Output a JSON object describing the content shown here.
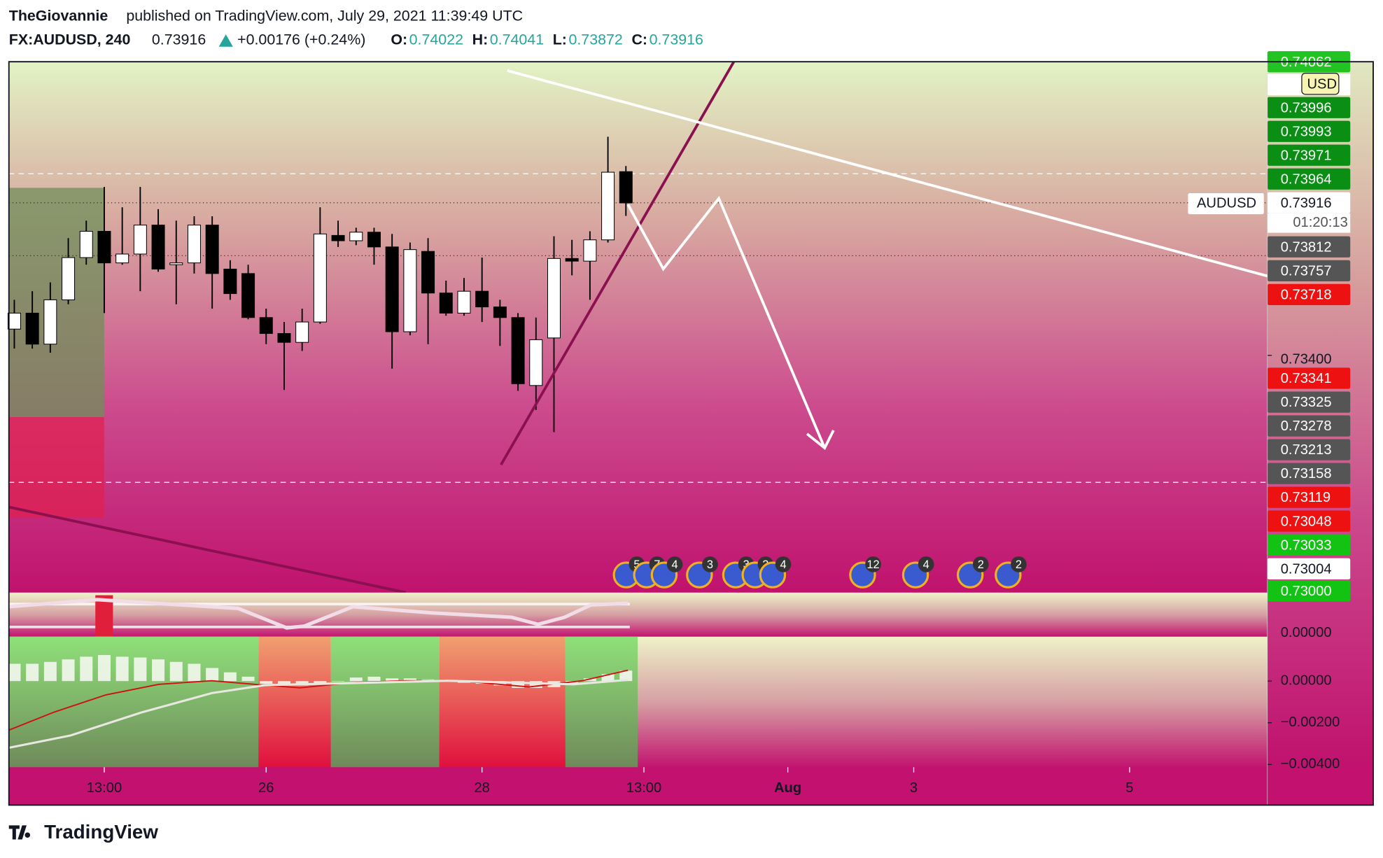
{
  "header": {
    "author": "TheGiovannie",
    "published": "published on TradingView.com, July 29, 2021 11:39:49 UTC",
    "symbol": "FX:AUDUSD, 240",
    "last": "0.73916",
    "change": "+0.00176 (+0.24%)",
    "ohlc": [
      {
        "label": "O:",
        "value": "0.74022"
      },
      {
        "label": "H:",
        "value": "0.74041"
      },
      {
        "label": "L:",
        "value": "0.73872"
      },
      {
        "label": "C:",
        "value": "0.73916"
      }
    ]
  },
  "chart_data": {
    "type": "candlestick",
    "x": [
      0,
      1,
      2,
      3,
      4,
      5,
      6,
      7,
      8,
      9,
      10,
      11,
      12,
      13,
      14,
      15,
      16,
      17,
      18,
      19,
      20,
      21,
      22,
      23,
      24,
      25,
      26,
      27,
      28,
      29,
      30,
      31,
      32,
      33,
      34
    ],
    "open": [
      0.73489,
      0.73543,
      0.73438,
      0.73588,
      0.73731,
      0.7382,
      0.73713,
      0.73743,
      0.73841,
      0.73707,
      0.73713,
      0.73841,
      0.73692,
      0.73677,
      0.73528,
      0.73474,
      0.73444,
      0.73513,
      0.73806,
      0.73788,
      0.73817,
      0.73767,
      0.7348,
      0.73752,
      0.73611,
      0.73543,
      0.73617,
      0.73564,
      0.73528,
      0.73298,
      0.73459,
      0.73728,
      0.73719,
      0.73791,
      0.74022
    ],
    "high": [
      0.73588,
      0.73617,
      0.73647,
      0.73797,
      0.73856,
      0.7397,
      0.73901,
      0.7397,
      0.73895,
      0.73856,
      0.73871,
      0.73871,
      0.73722,
      0.73707,
      0.73558,
      0.73513,
      0.73558,
      0.73901,
      0.73856,
      0.73832,
      0.73832,
      0.73811,
      0.73782,
      0.73797,
      0.73653,
      0.73662,
      0.73731,
      0.73588,
      0.73543,
      0.73528,
      0.73803,
      0.73791,
      0.7382,
      0.7414,
      0.74041
    ],
    "low": [
      0.73423,
      0.73423,
      0.73409,
      0.73573,
      0.73707,
      0.73543,
      0.73707,
      0.73617,
      0.73683,
      0.73573,
      0.73677,
      0.73558,
      0.73588,
      0.73522,
      0.73438,
      0.73283,
      0.73415,
      0.73507,
      0.73767,
      0.73773,
      0.73707,
      0.73355,
      0.73468,
      0.73438,
      0.73534,
      0.73534,
      0.73513,
      0.73432,
      0.7328,
      0.73215,
      0.7314,
      0.73671,
      0.73588,
      0.73782,
      0.73872
    ],
    "close": [
      0.73543,
      0.73438,
      0.73588,
      0.73731,
      0.7382,
      0.73713,
      0.73743,
      0.73841,
      0.73692,
      0.73713,
      0.73841,
      0.73677,
      0.73609,
      0.73528,
      0.73474,
      0.73444,
      0.73513,
      0.73811,
      0.73788,
      0.73817,
      0.73767,
      0.7348,
      0.73758,
      0.73611,
      0.73543,
      0.73617,
      0.73564,
      0.73528,
      0.73304,
      0.73453,
      0.73728,
      0.73719,
      0.73791,
      0.7402,
      0.73916
    ],
    "up_color": "#ffffff",
    "down_color": "#000000",
    "xlim": [
      -0.3,
      69.66
    ],
    "xticks": [
      {
        "value": 5,
        "label": "13:00"
      },
      {
        "value": 14,
        "label": "26"
      },
      {
        "value": 26,
        "label": "28"
      },
      {
        "value": 35,
        "label": "13:00"
      },
      {
        "value": 43,
        "label": "Aug"
      },
      {
        "value": 50,
        "label": "3"
      },
      {
        "value": 62,
        "label": "5"
      }
    ],
    "ylim": [
      0.72597,
      0.74394
    ],
    "yticks": [
      {
        "value": 0.734,
        "label": "0.73400"
      }
    ],
    "symbol_tag": "AUDUSD",
    "currency": "USD",
    "countdown": "01:20:13",
    "price_labels": [
      {
        "value": 0.74062,
        "color": "#22c322"
      },
      {
        "value": 0.73996,
        "color": "#0a8f14"
      },
      {
        "value": 0.73993,
        "color": "#0a8f14"
      },
      {
        "value": 0.73971,
        "color": "#0a8f14"
      },
      {
        "value": 0.73964,
        "color": "#0a8f14"
      },
      {
        "value": 0.73916,
        "color": "#ffffff"
      },
      {
        "value": 0.73812,
        "color": "#555555"
      },
      {
        "value": 0.73757,
        "color": "#555555"
      },
      {
        "value": 0.73718,
        "color": "#ee1111"
      },
      {
        "value": 0.73341,
        "color": "#ee1111"
      },
      {
        "value": 0.73325,
        "color": "#555555"
      },
      {
        "value": 0.73278,
        "color": "#555555"
      },
      {
        "value": 0.73213,
        "color": "#555555"
      },
      {
        "value": 0.73158,
        "color": "#555555"
      },
      {
        "value": 0.73119,
        "color": "#ee1111"
      },
      {
        "value": 0.73048,
        "color": "#ee1111"
      },
      {
        "value": 0.73033,
        "color": "#13c313"
      },
      {
        "value": 0.73004,
        "color": "#ffffff"
      },
      {
        "value": 0.73,
        "label": "0.73000",
        "color": "#13c313"
      }
    ],
    "events": [
      5,
      7,
      4,
      3,
      3,
      2,
      4,
      12,
      4,
      2,
      2
    ],
    "oscillator_label": "0.00000",
    "macd": {
      "values": [
        0.00083,
        0.00083,
        0.00092,
        0.00104,
        0.00117,
        0.00125,
        0.00117,
        0.00113,
        0.00104,
        0.00092,
        0.00083,
        0.00063,
        0.00042,
        0.00021,
        -0.00013,
        -0.00021,
        -0.00021,
        -0.00017,
        0,
        0.00017,
        0.00021,
        0.00013,
        0.00013,
        8e-05,
        0,
        -8e-05,
        -0.00013,
        -0.00021,
        -0.00033,
        -0.00033,
        -0.00029,
        -0.00013,
        0.00013,
        0.00033,
        0.0005
      ],
      "color": "#f4f7ee",
      "ylim": [
        -0.00413,
        0.00213
      ],
      "yticks": [
        {
          "value": 0,
          "label": "0.00000"
        },
        {
          "value": -0.002,
          "label": "−0.00200"
        },
        {
          "value": -0.004,
          "label": "−0.00400"
        }
      ]
    }
  },
  "footer": {
    "brand": "TradingView"
  }
}
